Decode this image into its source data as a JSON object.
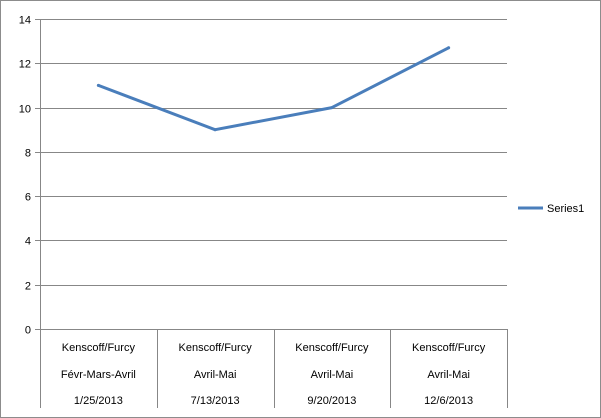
{
  "chart_data": {
    "type": "line",
    "categories": [
      [
        "Kenscoff/Furcy",
        "Févr-Mars-Avril",
        "1/25/2013"
      ],
      [
        "Kenscoff/Furcy",
        "Avril-Mai",
        "7/13/2013"
      ],
      [
        "Kenscoff/Furcy",
        "Avril-Mai",
        "9/20/2013"
      ],
      [
        "Kenscoff/Furcy",
        "Avril-Mai",
        "12/6/2013"
      ]
    ],
    "series": [
      {
        "name": "Series1",
        "values": [
          11,
          9,
          10,
          12.7
        ],
        "color": "#4a7ebb"
      }
    ],
    "ylim": [
      0,
      14
    ],
    "yticks": [
      "0",
      "2",
      "4",
      "6",
      "8",
      "10",
      "12",
      "14"
    ],
    "title": "",
    "xlabel": "",
    "ylabel": "",
    "grid": true,
    "legend_position": "right"
  }
}
